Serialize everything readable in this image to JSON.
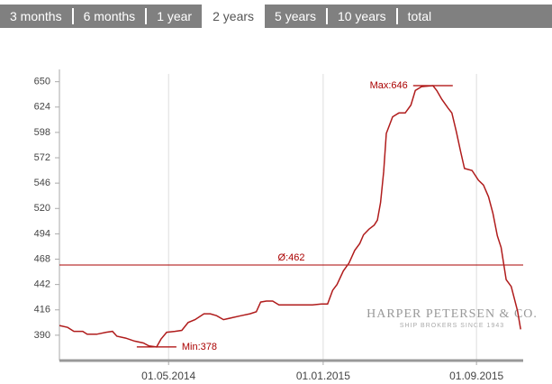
{
  "tabs": {
    "items": [
      "3 months",
      "6 months",
      "1 year",
      "2 years",
      "5 years",
      "10 years",
      "total"
    ],
    "selected": 3
  },
  "chart_data": {
    "type": "line",
    "x": [
      "09.11.2013",
      "22.11.2013",
      "02.12.2013",
      "16.12.2013",
      "23.12.2013",
      "07.01.2014",
      "22.01.2014",
      "01.02.2014",
      "08.02.2014",
      "22.02.2014",
      "08.03.2014",
      "22.03.2014",
      "31.03.2014",
      "12.04.2014",
      "19.04.2014",
      "28.04.2014",
      "11.05.2014",
      "22.05.2014",
      "01.06.2014",
      "12.06.2014",
      "26.06.2014",
      "06.07.2014",
      "16.07.2014",
      "27.07.2014",
      "10.08.2014",
      "24.08.2014",
      "07.09.2014",
      "17.09.2014",
      "24.09.2014",
      "03.10.2014",
      "13.10.2014",
      "23.10.2014",
      "17.11.2014",
      "15.12.2014",
      "29.12.2014",
      "08.01.2015",
      "16.01.2015",
      "23.01.2015",
      "02.02.2015",
      "11.02.2015",
      "20.02.2015",
      "28.02.2015",
      "06.03.2015",
      "15.03.2015",
      "23.03.2015",
      "28.03.2015",
      "02.04.2015",
      "07.04.2015",
      "11.04.2015",
      "21.04.2015",
      "01.05.2015",
      "11.05.2015",
      "20.05.2015",
      "27.05.2015",
      "06.06.2015",
      "24.06.2015",
      "30.06.2015",
      "08.07.2015",
      "18.07.2015",
      "24.07.2015",
      "31.07.2015",
      "07.08.2015",
      "13.08.2015",
      "25.08.2015",
      "04.09.2015",
      "12.09.2015",
      "20.09.2015",
      "27.09.2015",
      "04.10.2015",
      "10.10.2015",
      "18.10.2015",
      "26.10.2015",
      "05.11.2015",
      "10.11.2015"
    ],
    "series": [
      {
        "color": "#b01c1c",
        "values": [
          400,
          398,
          394,
          394,
          391,
          391,
          393,
          394,
          389,
          387,
          384,
          382,
          379,
          378,
          386,
          393,
          394,
          395,
          403,
          406,
          412,
          412,
          410,
          406,
          408,
          410,
          412,
          414,
          424,
          425,
          425,
          421,
          421,
          421,
          422,
          422,
          436,
          442,
          456,
          464,
          477,
          484,
          493,
          499,
          503,
          508,
          526,
          558,
          597,
          614,
          618,
          618,
          626,
          641,
          645,
          646,
          641,
          632,
          623,
          618,
          599,
          578,
          561,
          559,
          549,
          544,
          532,
          515,
          492,
          480,
          447,
          440,
          415,
          396
        ]
      }
    ],
    "xlim": [
      "09.11.2013",
      "14.11.2015"
    ],
    "xticks": [
      "01.05.2014",
      "01.01.2015",
      "01.09.2015"
    ],
    "ylim": [
      364,
      658
    ],
    "yticks": [
      390,
      416,
      442,
      468,
      494,
      520,
      546,
      572,
      598,
      624,
      650
    ],
    "grid": "x",
    "annotations": [
      {
        "kind": "max",
        "label": "Max:646",
        "value": 646,
        "x": "24.06.2015"
      },
      {
        "kind": "min",
        "label": "Min:378",
        "value": 378,
        "x": "12.04.2014"
      },
      {
        "kind": "average",
        "label": "Ø:462",
        "value": 462
      }
    ],
    "watermark": {
      "title": "HARPER PETERSEN & CO.",
      "subtitle": "SHIP BROKERS SINCE 1943"
    }
  }
}
